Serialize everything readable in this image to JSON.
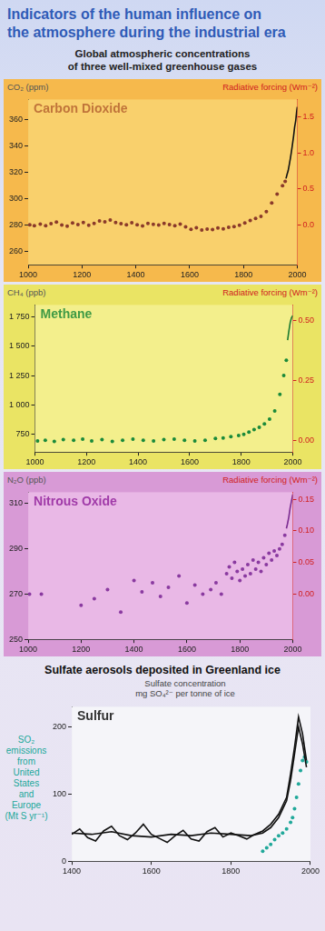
{
  "title": "Indicators of the human influence on\nthe atmosphere during the industrial era",
  "subtitle": "Global atmospheric concentrations\nof three well-mixed greenhouse gases",
  "chart_data": [
    {
      "type": "scatter",
      "title": "Carbon Dioxide",
      "y_label": "CO₂ (ppm)",
      "y2_label": "Radiative forcing (Wm⁻²)",
      "xlim": [
        1000,
        2000
      ],
      "xticks": [
        1000,
        1200,
        1400,
        1600,
        1800,
        2000
      ],
      "ylim": [
        250,
        375
      ],
      "yticks": [
        260,
        280,
        300,
        320,
        340,
        360
      ],
      "y2lim": [
        -0.549,
        1.738
      ],
      "y2ticks": [
        {
          "value": 0,
          "label": "0.0"
        },
        0.5,
        {
          "value": 1,
          "label": "1.0"
        },
        1.5
      ],
      "grid": false,
      "series": [
        {
          "type": "scatter",
          "color": "#8b3a2a",
          "marker": "circle",
          "x": [
            1006,
            1023,
            1045,
            1065,
            1085,
            1105,
            1125,
            1145,
            1165,
            1185,
            1205,
            1225,
            1245,
            1265,
            1285,
            1305,
            1325,
            1345,
            1365,
            1385,
            1405,
            1425,
            1445,
            1465,
            1485,
            1505,
            1525,
            1545,
            1565,
            1585,
            1605,
            1625,
            1645,
            1665,
            1685,
            1705,
            1725,
            1745,
            1765,
            1785,
            1805,
            1825,
            1845,
            1865,
            1885,
            1905,
            1925,
            1945,
            1955
          ],
          "values": [
            280.2,
            279.6,
            280.8,
            279.5,
            281.0,
            282.3,
            280.1,
            279.2,
            281.6,
            280.4,
            282.0,
            279.8,
            281.2,
            283.1,
            282.4,
            283.8,
            282.0,
            281.0,
            280.3,
            281.7,
            280.2,
            279.4,
            281.3,
            280.6,
            280.0,
            281.2,
            280.4,
            279.6,
            280.8,
            278.6,
            276.8,
            277.9,
            276.2,
            277.0,
            276.6,
            277.8,
            277.2,
            278.3,
            278.9,
            279.8,
            281.6,
            283.4,
            285.0,
            286.6,
            290.2,
            296.8,
            303.5,
            309.8,
            313.0
          ]
        },
        {
          "type": "line",
          "color": "#111111",
          "marker": "none",
          "line_style": "solid",
          "x": [
            1958,
            1962,
            1966,
            1970,
            1974,
            1978,
            1982,
            1986,
            1990,
            1994,
            1998,
            2000
          ],
          "values": [
            315.2,
            318.4,
            321.1,
            325.5,
            330.1,
            335.3,
            341.0,
            347.0,
            354.0,
            358.8,
            366.6,
            369.4
          ]
        }
      ]
    },
    {
      "type": "scatter",
      "title": "Methane",
      "y_label": "CH₄ (ppb)",
      "y2_label": "Radiative forcing (Wm⁻²)",
      "xlim": [
        1000,
        2000
      ],
      "xticks": [
        1000,
        1200,
        1400,
        1600,
        1800,
        2000
      ],
      "ylim": [
        600,
        1850
      ],
      "yticks": [
        750,
        {
          "value": 1000,
          "label": "1 000"
        },
        {
          "value": 1250,
          "label": "1 250"
        },
        {
          "value": 1500,
          "label": "1 500"
        },
        {
          "value": 1750,
          "label": "1 750"
        }
      ],
      "y2lim": [
        -0.049,
        0.564
      ],
      "y2ticks": [
        {
          "value": 0,
          "label": "0.00"
        },
        0.25,
        {
          "value": 0.5,
          "label": "0.50"
        }
      ],
      "grid": false,
      "series": [
        {
          "type": "scatter",
          "color": "#1a8a3a",
          "marker": "circle",
          "x": [
            1010,
            1040,
            1075,
            1110,
            1150,
            1185,
            1220,
            1260,
            1300,
            1340,
            1380,
            1420,
            1460,
            1500,
            1540,
            1580,
            1620,
            1660,
            1700,
            1730,
            1760,
            1790,
            1810,
            1830,
            1850,
            1870,
            1890,
            1910,
            1930,
            1950,
            1965,
            1975
          ],
          "values": [
            695,
            700,
            690,
            705,
            700,
            710,
            695,
            705,
            690,
            700,
            710,
            700,
            695,
            705,
            710,
            700,
            695,
            700,
            715,
            720,
            730,
            740,
            750,
            770,
            790,
            810,
            840,
            880,
            950,
            1090,
            1250,
            1380
          ]
        },
        {
          "type": "line",
          "color": "#1a7a30",
          "marker": "none",
          "line_style": "solid",
          "x": [
            1980,
            1985,
            1990,
            1995,
            2000
          ],
          "values": [
            1550,
            1630,
            1700,
            1740,
            1760
          ]
        }
      ]
    },
    {
      "type": "scatter",
      "title": "Nitrous Oxide",
      "y_label": "N₂O (ppb)",
      "y2_label": "Radiative forcing (Wm⁻²)",
      "xlim": [
        1000,
        2000
      ],
      "xticks": [
        1000,
        1200,
        1400,
        1600,
        1800,
        2000
      ],
      "ylim": [
        250,
        315
      ],
      "yticks": [
        250,
        270,
        290,
        310
      ],
      "y2lim": [
        -0.071,
        0.161
      ],
      "y2ticks": [
        {
          "value": 0,
          "label": "0.00"
        },
        0.05,
        {
          "value": 0.1,
          "label": "0.10"
        },
        0.15
      ],
      "grid": false,
      "series": [
        {
          "type": "scatter",
          "color": "#8a3aa0",
          "marker": "circle",
          "x": [
            1005,
            1050,
            1200,
            1250,
            1300,
            1350,
            1400,
            1430,
            1470,
            1500,
            1530,
            1570,
            1600,
            1630,
            1660,
            1690,
            1710,
            1730,
            1750,
            1760,
            1770,
            1780,
            1790,
            1800,
            1810,
            1820,
            1830,
            1840,
            1850,
            1860,
            1870,
            1880,
            1890,
            1900,
            1910,
            1920,
            1930,
            1940,
            1950,
            1960,
            1970
          ],
          "values": [
            270,
            270,
            265,
            268,
            272,
            262,
            276,
            271,
            275,
            269,
            273,
            278,
            266,
            274,
            270,
            272,
            275,
            270,
            279,
            282,
            277,
            284,
            280,
            276,
            281,
            278,
            283,
            279,
            285,
            281,
            284,
            280,
            286,
            283,
            288,
            285,
            289,
            287,
            290,
            292,
            296
          ]
        },
        {
          "type": "line",
          "color": "#7a2a90",
          "marker": "none",
          "line_style": "solid",
          "x": [
            1976,
            1980,
            1985,
            1990,
            1995,
            2000
          ],
          "values": [
            299,
            301,
            304,
            308,
            311,
            314
          ]
        }
      ]
    },
    {
      "type": "line",
      "title": "Sulfate aerosols deposited in Greenland ice",
      "annotation": "Sulfur",
      "y_label": "Sulfate concentration\nmg SO₄²⁻ per tonne of ice",
      "xlim": [
        1400,
        2000
      ],
      "xticks": [
        1400,
        1600,
        1800,
        2000
      ],
      "ylim": [
        0,
        230
      ],
      "yticks": [
        0,
        100,
        200
      ],
      "grid": false,
      "series": [
        {
          "type": "line",
          "color": "#111111",
          "marker": "none",
          "line_style": "solid",
          "x": [
            1400,
            1420,
            1440,
            1460,
            1480,
            1500,
            1520,
            1540,
            1560,
            1580,
            1600,
            1620,
            1640,
            1660,
            1680,
            1700,
            1720,
            1740,
            1760,
            1780,
            1800,
            1820,
            1840,
            1860,
            1880,
            1900,
            1920,
            1940,
            1950,
            1960,
            1970,
            1980,
            1990
          ],
          "values": [
            40,
            48,
            35,
            30,
            45,
            52,
            38,
            32,
            42,
            55,
            40,
            34,
            28,
            38,
            46,
            33,
            30,
            44,
            50,
            36,
            42,
            38,
            33,
            40,
            45,
            55,
            70,
            95,
            130,
            170,
            215,
            190,
            150
          ]
        },
        {
          "type": "line",
          "color": "#111111",
          "marker": "none",
          "line_style": "solid",
          "x": [
            1400,
            1450,
            1500,
            1550,
            1600,
            1650,
            1700,
            1750,
            1800,
            1850,
            1880,
            1900,
            1920,
            1940,
            1950,
            1960,
            1970,
            1980,
            1990
          ],
          "values": [
            42,
            40,
            44,
            38,
            36,
            40,
            38,
            42,
            40,
            38,
            42,
            50,
            65,
            90,
            120,
            160,
            200,
            175,
            140
          ]
        },
        {
          "type": "scatter",
          "name": "SO₂ emissions\nfrom United States\nand Europe\n(Mt S yr⁻¹)",
          "color": "#20a89a",
          "marker": "circle",
          "x": [
            1880,
            1890,
            1900,
            1910,
            1920,
            1930,
            1940,
            1950,
            1955,
            1960,
            1965,
            1970,
            1975,
            1980,
            1985,
            1990
          ],
          "values": [
            15,
            20,
            25,
            32,
            38,
            42,
            48,
            58,
            65,
            78,
            95,
            115,
            135,
            150,
            155,
            148
          ]
        }
      ]
    }
  ]
}
